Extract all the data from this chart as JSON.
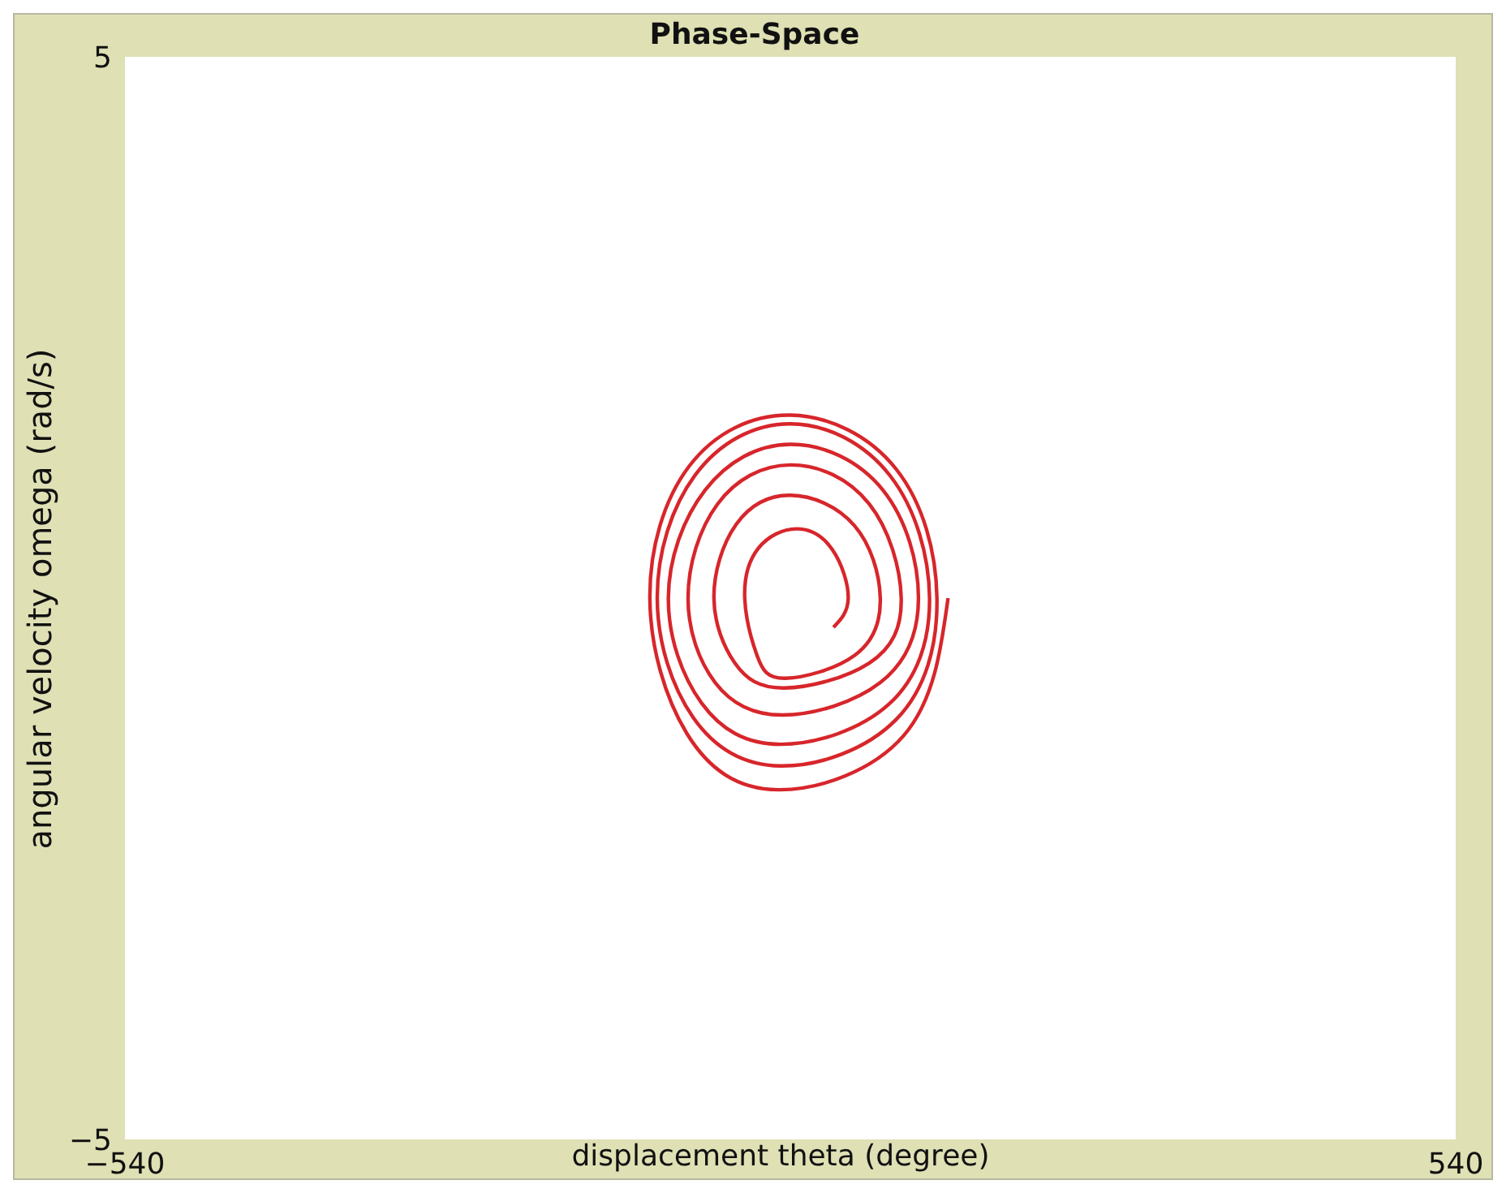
{
  "chart_data": {
    "type": "line",
    "title": "Phase-Space",
    "xlabel": "displacement theta (degree)",
    "ylabel": "angular velocity omega (rad/s)",
    "xlim": [
      -540,
      540
    ],
    "ylim": [
      -5,
      5
    ],
    "xticks": [
      -540,
      540
    ],
    "yticks": [
      -5,
      5
    ],
    "grid": false,
    "legend": false,
    "marker": "none",
    "line_style": "solid",
    "series": [
      {
        "color": "#d7262b",
        "x": [
          128,
          92,
          -10,
          -84,
          -114,
          -82,
          0,
          86,
          119,
          86,
          -8,
          -79,
          -108,
          -77,
          0,
          81,
          113,
          80,
          -8,
          -72,
          -99,
          -69,
          0,
          75,
          104,
          73,
          -6,
          -61,
          -83,
          -59,
          0,
          64,
          90,
          64,
          -5,
          -45,
          -62,
          -44,
          0,
          52,
          73,
          52,
          -4,
          -27,
          -37,
          -26,
          5,
          34,
          47,
          35
        ],
        "values": [
          0,
          -1.27,
          -1.77,
          -1.25,
          0,
          1.22,
          1.69,
          1.19,
          0,
          -1.12,
          -1.55,
          -1.1,
          0,
          1.14,
          1.61,
          1.13,
          0,
          -0.98,
          -1.35,
          -0.97,
          0,
          1.0,
          1.42,
          1.0,
          0,
          -0.78,
          -1.08,
          -0.78,
          0,
          0.87,
          1.23,
          0.87,
          0,
          -0.6,
          -0.83,
          -0.6,
          0,
          0.68,
          0.95,
          0.67,
          0,
          -0.53,
          -0.74,
          -0.53,
          0,
          0.46,
          0.64,
          0.45,
          0,
          -0.27
        ]
      }
    ]
  }
}
